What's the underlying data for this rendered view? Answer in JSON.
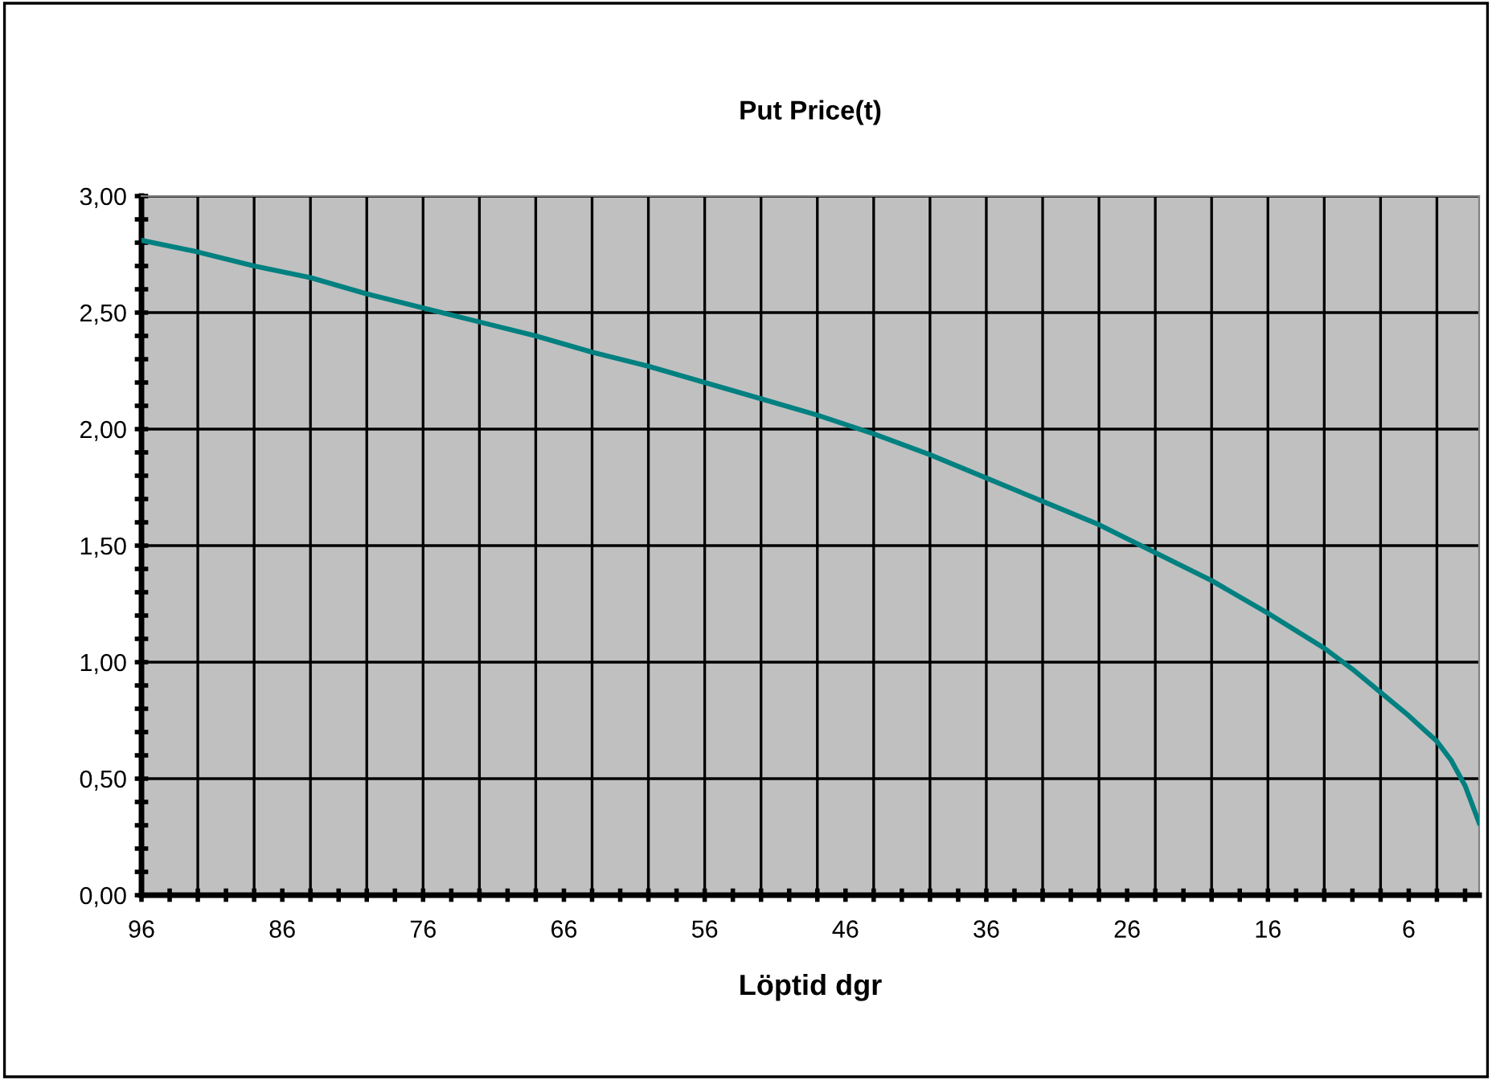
{
  "chart_data": {
    "type": "line",
    "title": "Put Price(t)",
    "xlabel": "Löptid dgr",
    "x": [
      96,
      92,
      88,
      84,
      80,
      76,
      72,
      68,
      64,
      60,
      56,
      52,
      48,
      44,
      40,
      36,
      32,
      28,
      24,
      20,
      16,
      12,
      10,
      8,
      6,
      4,
      3,
      2,
      1
    ],
    "series": [
      {
        "color": "#008080",
        "values": [
          2.81,
          2.76,
          2.7,
          2.65,
          2.58,
          2.52,
          2.46,
          2.4,
          2.33,
          2.27,
          2.2,
          2.13,
          2.06,
          1.98,
          1.89,
          1.79,
          1.69,
          1.59,
          1.47,
          1.35,
          1.21,
          1.06,
          0.97,
          0.87,
          0.77,
          0.66,
          0.58,
          0.47,
          0.31
        ]
      }
    ],
    "xlim": [
      96,
      1
    ],
    "xticks": [
      {
        "value": 96,
        "label": "96"
      },
      {
        "value": 94,
        "label": null
      },
      {
        "value": 92,
        "label": null
      },
      {
        "value": 90,
        "label": null
      },
      {
        "value": 88,
        "label": null
      },
      {
        "value": 86,
        "label": "86"
      },
      {
        "value": 84,
        "label": null
      },
      {
        "value": 82,
        "label": null
      },
      {
        "value": 80,
        "label": null
      },
      {
        "value": 78,
        "label": null
      },
      {
        "value": 76,
        "label": "76"
      },
      {
        "value": 74,
        "label": null
      },
      {
        "value": 72,
        "label": null
      },
      {
        "value": 70,
        "label": null
      },
      {
        "value": 68,
        "label": null
      },
      {
        "value": 66,
        "label": "66"
      },
      {
        "value": 64,
        "label": null
      },
      {
        "value": 62,
        "label": null
      },
      {
        "value": 60,
        "label": null
      },
      {
        "value": 58,
        "label": null
      },
      {
        "value": 56,
        "label": "56"
      },
      {
        "value": 54,
        "label": null
      },
      {
        "value": 52,
        "label": null
      },
      {
        "value": 50,
        "label": null
      },
      {
        "value": 48,
        "label": null
      },
      {
        "value": 46,
        "label": "46"
      },
      {
        "value": 44,
        "label": null
      },
      {
        "value": 42,
        "label": null
      },
      {
        "value": 40,
        "label": null
      },
      {
        "value": 38,
        "label": null
      },
      {
        "value": 36,
        "label": "36"
      },
      {
        "value": 34,
        "label": null
      },
      {
        "value": 32,
        "label": null
      },
      {
        "value": 30,
        "label": null
      },
      {
        "value": 28,
        "label": null
      },
      {
        "value": 26,
        "label": "26"
      },
      {
        "value": 24,
        "label": null
      },
      {
        "value": 22,
        "label": null
      },
      {
        "value": 20,
        "label": null
      },
      {
        "value": 18,
        "label": null
      },
      {
        "value": 16,
        "label": "16"
      },
      {
        "value": 14,
        "label": null
      },
      {
        "value": 12,
        "label": null
      },
      {
        "value": 10,
        "label": null
      },
      {
        "value": 8,
        "label": null
      },
      {
        "value": 6,
        "label": "6"
      },
      {
        "value": 4,
        "label": null
      },
      {
        "value": 2,
        "label": null
      }
    ],
    "ylim": [
      0,
      3
    ],
    "yticks": [
      {
        "value": 0,
        "label": "0,00"
      },
      {
        "value": 0.1,
        "label": null
      },
      {
        "value": 0.2,
        "label": null
      },
      {
        "value": 0.3,
        "label": null
      },
      {
        "value": 0.4,
        "label": null
      },
      {
        "value": 0.5,
        "label": "0,50"
      },
      {
        "value": 0.6,
        "label": null
      },
      {
        "value": 0.7,
        "label": null
      },
      {
        "value": 0.8,
        "label": null
      },
      {
        "value": 0.9,
        "label": null
      },
      {
        "value": 1.0,
        "label": "1,00"
      },
      {
        "value": 1.1,
        "label": null
      },
      {
        "value": 1.2,
        "label": null
      },
      {
        "value": 1.3,
        "label": null
      },
      {
        "value": 1.4,
        "label": null
      },
      {
        "value": 1.5,
        "label": "1,50"
      },
      {
        "value": 1.6,
        "label": null
      },
      {
        "value": 1.7,
        "label": null
      },
      {
        "value": 1.8,
        "label": null
      },
      {
        "value": 1.9,
        "label": null
      },
      {
        "value": 2.0,
        "label": "2,00"
      },
      {
        "value": 2.1,
        "label": null
      },
      {
        "value": 2.2,
        "label": null
      },
      {
        "value": 2.3,
        "label": null
      },
      {
        "value": 2.4,
        "label": null
      },
      {
        "value": 2.5,
        "label": "2,50"
      },
      {
        "value": 2.6,
        "label": null
      },
      {
        "value": 2.7,
        "label": null
      },
      {
        "value": 2.8,
        "label": null
      },
      {
        "value": 2.9,
        "label": null
      },
      {
        "value": 3.0,
        "label": "3,00"
      }
    ],
    "grid": true,
    "line_style": "solid",
    "marker": "none"
  }
}
